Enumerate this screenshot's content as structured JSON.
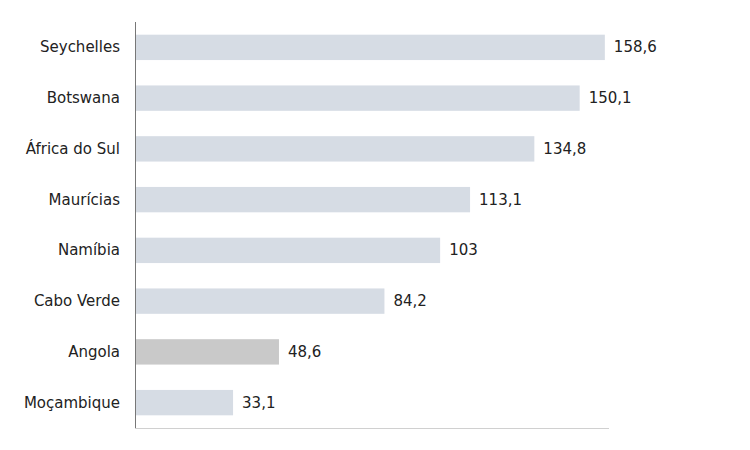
{
  "chart_data": {
    "type": "bar",
    "orientation": "horizontal",
    "categories": [
      "Seychelles",
      "Botswana",
      "África do Sul",
      "Maurícias",
      "Namíbia",
      "Cabo Verde",
      "Angola",
      "Moçambique"
    ],
    "values": [
      158.6,
      150.1,
      134.8,
      113.1,
      103,
      84.2,
      48.6,
      33.1
    ],
    "value_labels": [
      "158,6",
      "150,1",
      "134,8",
      "113,1",
      "103",
      "84,2",
      "48,6",
      "33,1"
    ],
    "colors": [
      "#d6dce4",
      "#d6dce4",
      "#d6dce4",
      "#d6dce4",
      "#d6dce4",
      "#d6dce4",
      "#c9c9c9",
      "#d6dce4"
    ],
    "xlim": [
      0,
      160
    ],
    "xticks": [],
    "grid": false,
    "data_labels": true,
    "tick_labels": "y"
  }
}
